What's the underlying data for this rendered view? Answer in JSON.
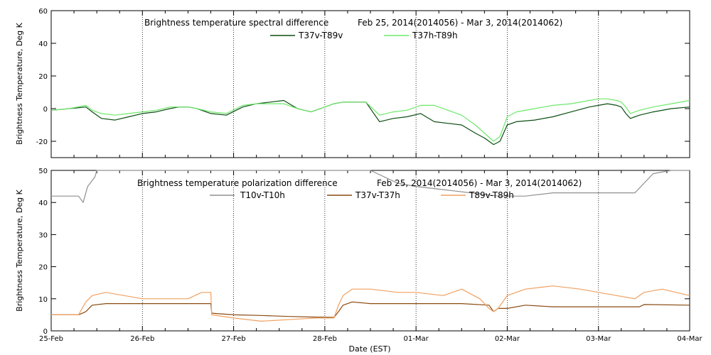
{
  "chart_data": [
    {
      "type": "line",
      "title": "Brightness temperature spectral difference",
      "subtitle": "Feb 25, 2014(2014056) - Mar  3, 2014(2014062)",
      "xlabel": "",
      "ylabel": "Brightness Temperature, Deg K",
      "x_range": [
        "25-Feb",
        "04-Mar"
      ],
      "ylim": [
        -30,
        60
      ],
      "yticks": [
        -20,
        0,
        20,
        40,
        60
      ],
      "grid": "vertical dotted at day boundaries",
      "legend_placement": "top-center",
      "series": [
        {
          "name": "T37v-T89v",
          "color": "#0b4d12",
          "x": [
            0,
            0.2,
            0.38,
            0.45,
            0.55,
            0.7,
            0.85,
            1.0,
            1.15,
            1.3,
            1.4,
            1.5,
            1.6,
            1.75,
            1.92,
            2.1,
            2.25,
            2.4,
            2.55,
            2.7,
            2.85,
            3.0,
            3.1,
            3.2,
            3.3,
            3.45,
            3.6,
            3.75,
            3.9,
            4.05,
            4.2,
            4.35,
            4.5,
            4.65,
            4.75,
            4.85,
            4.92,
            5.0,
            5.1,
            5.3,
            5.5,
            5.7,
            5.9,
            6.0,
            6.1,
            6.2,
            6.25,
            6.3,
            6.35,
            6.45,
            6.6,
            6.8,
            7.0
          ],
          "y": [
            -1,
            0,
            1,
            -2,
            -6,
            -7,
            -5,
            -3,
            -2,
            0,
            1,
            1,
            0,
            -3,
            -4,
            1,
            3,
            4,
            5,
            0,
            -2,
            1,
            3,
            4,
            4,
            4,
            -8,
            -6,
            -5,
            -3,
            -8,
            -9,
            -10,
            -15,
            -18,
            -22,
            -20,
            -10,
            -8,
            -7,
            -5,
            -2,
            1,
            2,
            3,
            2,
            1,
            -3,
            -6,
            -4,
            -2,
            0,
            1
          ]
        },
        {
          "name": "T37h-T89h",
          "color": "#6ee86a",
          "x": [
            0,
            0.2,
            0.38,
            0.45,
            0.55,
            0.7,
            0.85,
            1.0,
            1.15,
            1.3,
            1.4,
            1.5,
            1.6,
            1.75,
            1.92,
            2.1,
            2.25,
            2.4,
            2.55,
            2.7,
            2.85,
            3.0,
            3.1,
            3.2,
            3.3,
            3.45,
            3.6,
            3.75,
            3.9,
            4.05,
            4.2,
            4.35,
            4.5,
            4.65,
            4.75,
            4.85,
            4.92,
            5.0,
            5.1,
            5.3,
            5.5,
            5.7,
            5.9,
            6.0,
            6.1,
            6.2,
            6.25,
            6.3,
            6.35,
            6.45,
            6.6,
            6.8,
            7.0
          ],
          "y": [
            -1,
            0,
            2,
            -1,
            -3,
            -4,
            -3,
            -2,
            -1,
            1,
            1,
            1,
            0,
            -2,
            -3,
            2,
            3,
            3,
            3,
            0,
            -2,
            1,
            3,
            4,
            4,
            4,
            -4,
            -2,
            -1,
            2,
            2,
            -1,
            -4,
            -10,
            -15,
            -20,
            -17,
            -5,
            -2,
            0,
            2,
            3,
            5,
            6,
            6,
            5,
            4,
            1,
            -3,
            -1,
            1,
            3,
            5
          ]
        }
      ]
    },
    {
      "type": "line",
      "title": "Brightness temperature polarization difference",
      "subtitle": "Feb 25, 2014(2014056) - Mar  3, 2014(2014062)",
      "xlabel": "Date (EST)",
      "ylabel": "Brightness Temperature, Deg K",
      "x_range": [
        "25-Feb",
        "04-Mar"
      ],
      "xticks": [
        "25-Feb",
        "26-Feb",
        "27-Feb",
        "28-Feb",
        "01-Mar",
        "02-Mar",
        "03-Mar",
        "04-Mar"
      ],
      "ylim": [
        0,
        50
      ],
      "yticks": [
        0,
        10,
        20,
        30,
        40,
        50
      ],
      "grid": "vertical dotted at day boundaries",
      "legend_placement": "top-center",
      "series": [
        {
          "name": "T10v-T10h",
          "color": "#909090",
          "x": [
            0,
            0.2,
            0.3,
            0.35,
            0.4,
            0.48,
            0.5,
            3.5,
            3.8,
            4.0,
            4.3,
            4.6,
            4.9,
            5.2,
            5.5,
            5.8,
            6.1,
            6.4,
            6.6,
            6.8,
            7.0
          ],
          "y": [
            42,
            42,
            42,
            40,
            45,
            48,
            50,
            50,
            46,
            45,
            44,
            43,
            42,
            42,
            43,
            43,
            43,
            43,
            49,
            50,
            50
          ]
        },
        {
          "name": "T37v-T37h",
          "color": "#8a4a10",
          "x": [
            0,
            0.3,
            0.38,
            0.45,
            0.6,
            0.8,
            1.0,
            1.3,
            1.6,
            1.75,
            1.76,
            2.0,
            2.3,
            2.6,
            2.9,
            3.1,
            3.15,
            3.2,
            3.25,
            3.3,
            3.5,
            4.0,
            4.5,
            4.8,
            4.85,
            4.9,
            5.0,
            5.2,
            5.5,
            6.0,
            6.3,
            6.45,
            6.5,
            7.0
          ],
          "y": [
            5,
            5,
            6,
            8,
            8.5,
            8.5,
            8.5,
            8.5,
            8.5,
            8.5,
            5.5,
            5,
            4.8,
            4.5,
            4.3,
            4.2,
            6,
            8,
            8.5,
            9,
            8.5,
            8.5,
            8.5,
            8,
            6,
            7,
            7,
            8,
            7.5,
            7.5,
            7.5,
            7.5,
            8.2,
            8
          ]
        },
        {
          "name": "T89v-T89h",
          "color": "#f0a060",
          "x": [
            0,
            0.3,
            0.38,
            0.45,
            0.6,
            0.8,
            1.0,
            1.2,
            1.5,
            1.65,
            1.75,
            1.76,
            2.0,
            2.3,
            2.6,
            2.9,
            3.1,
            3.15,
            3.2,
            3.3,
            3.5,
            3.8,
            4.0,
            4.3,
            4.5,
            4.7,
            4.8,
            4.85,
            4.9,
            5.0,
            5.2,
            5.5,
            5.8,
            6.0,
            6.2,
            6.4,
            6.5,
            6.7,
            6.85,
            7.0
          ],
          "y": [
            5,
            5,
            9,
            11,
            12,
            11,
            10,
            10,
            10,
            12,
            12,
            5,
            4,
            3,
            3.5,
            4,
            4,
            8,
            11,
            13,
            13,
            12,
            12,
            11,
            13,
            10,
            7,
            6,
            7,
            11,
            13,
            14,
            13,
            12,
            11,
            10,
            12,
            13,
            12,
            11
          ]
        }
      ]
    }
  ]
}
